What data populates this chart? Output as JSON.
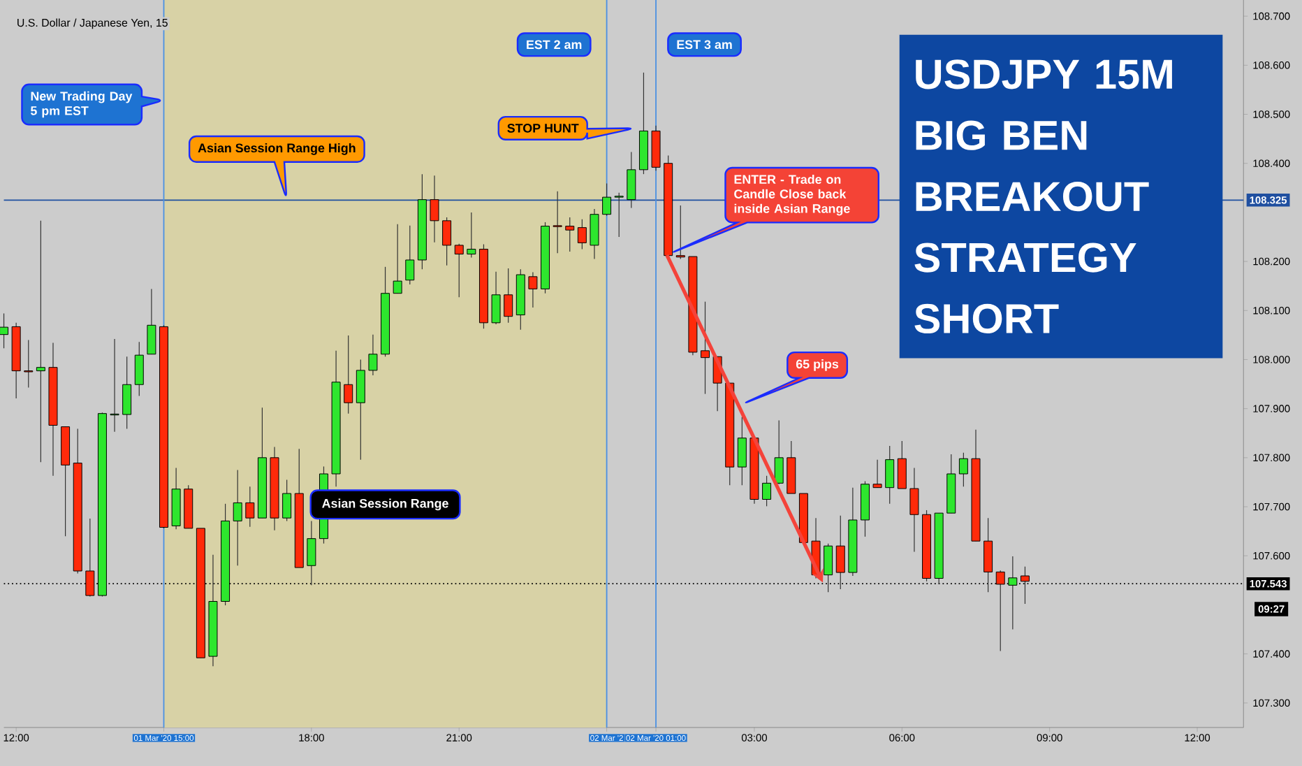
{
  "chart_data": {
    "type": "candlestick",
    "title": "USDJPY 15M BIG BEN BREAKOUT STRATEGY SHORT",
    "subtitle": "U.S. Dollar / Japanese Yen, 15",
    "categories": [
      null,
      "12:00",
      null,
      null,
      null,
      null,
      null,
      null,
      null,
      null,
      null,
      null,
      null,
      "01 Mar '20 15:00",
      null,
      null,
      null,
      null,
      null,
      null,
      null,
      null,
      null,
      null,
      null,
      "18:00",
      null,
      null,
      null,
      null,
      null,
      null,
      null,
      null,
      null,
      null,
      null,
      "21:00",
      null,
      null,
      null,
      null,
      null,
      null,
      null,
      null,
      null,
      null,
      null,
      "02 Mar '2",
      null,
      null,
      null,
      "02 Mar '20 01:00",
      null,
      null,
      null,
      null,
      null,
      null,
      null,
      "03:00",
      null,
      null,
      null,
      null,
      null,
      null,
      null,
      null,
      null,
      null,
      null,
      "06:00",
      null,
      null,
      null,
      null,
      null,
      null,
      null,
      null,
      null,
      null,
      null,
      "09:00",
      null,
      null,
      null,
      null,
      null,
      null,
      null,
      null,
      null,
      null,
      null,
      "12:00",
      null,
      null,
      null
    ],
    "ohlc": [
      [
        108.051,
        108.094,
        108.023,
        108.066
      ],
      [
        108.067,
        108.075,
        107.921,
        107.977
      ],
      [
        107.977,
        108.04,
        107.943,
        107.975
      ],
      [
        107.977,
        108.283,
        107.791,
        107.984
      ],
      [
        107.984,
        108.034,
        107.763,
        107.866
      ],
      [
        107.863,
        107.863,
        107.64,
        107.785
      ],
      [
        107.789,
        107.859,
        107.564,
        107.569
      ],
      [
        107.569,
        107.676,
        107.517,
        107.519
      ],
      [
        107.519,
        107.892,
        107.517,
        107.89
      ],
      [
        107.887,
        108.042,
        107.853,
        107.889
      ],
      [
        107.888,
        108.006,
        107.859,
        107.949
      ],
      [
        107.949,
        108.036,
        107.926,
        108.009
      ],
      [
        108.011,
        108.144,
        108.011,
        108.07
      ],
      [
        108.067,
        108.07,
        107.656,
        107.658
      ],
      [
        107.661,
        107.779,
        107.654,
        107.736
      ],
      [
        107.736,
        107.744,
        107.656,
        107.656
      ],
      [
        107.656,
        107.656,
        107.392,
        107.392
      ],
      [
        107.395,
        107.602,
        107.375,
        107.507
      ],
      [
        107.507,
        107.706,
        107.499,
        107.671
      ],
      [
        107.671,
        107.775,
        107.58,
        107.708
      ],
      [
        107.708,
        107.741,
        107.659,
        107.677
      ],
      [
        107.677,
        107.902,
        107.677,
        107.8
      ],
      [
        107.8,
        107.822,
        107.652,
        107.677
      ],
      [
        107.677,
        107.755,
        107.671,
        107.727
      ],
      [
        107.727,
        107.818,
        107.576,
        107.576
      ],
      [
        107.58,
        107.671,
        107.54,
        107.635
      ],
      [
        107.635,
        107.782,
        107.625,
        107.767
      ],
      [
        107.767,
        108.018,
        107.741,
        107.954
      ],
      [
        107.949,
        108.049,
        107.89,
        107.912
      ],
      [
        107.912,
        108.0,
        107.796,
        107.978
      ],
      [
        107.978,
        108.051,
        107.968,
        108.011
      ],
      [
        108.011,
        108.189,
        108.006,
        108.135
      ],
      [
        108.135,
        108.276,
        108.135,
        108.16
      ],
      [
        108.162,
        108.273,
        108.153,
        108.203
      ],
      [
        108.203,
        108.378,
        108.184,
        108.326
      ],
      [
        108.326,
        108.375,
        108.239,
        108.283
      ],
      [
        108.283,
        108.29,
        108.192,
        108.233
      ],
      [
        108.233,
        108.236,
        108.127,
        108.215
      ],
      [
        108.215,
        108.3,
        108.208,
        108.225
      ],
      [
        108.225,
        108.235,
        108.063,
        108.075
      ],
      [
        108.075,
        108.179,
        108.072,
        108.132
      ],
      [
        108.132,
        108.186,
        108.075,
        108.088
      ],
      [
        108.091,
        108.184,
        108.061,
        108.173
      ],
      [
        108.169,
        108.178,
        108.106,
        108.144
      ],
      [
        108.144,
        108.28,
        108.135,
        108.272
      ],
      [
        108.273,
        108.343,
        108.217,
        108.271
      ],
      [
        108.272,
        108.29,
        108.22,
        108.264
      ],
      [
        108.269,
        108.286,
        108.225,
        108.238
      ],
      [
        108.233,
        108.307,
        108.205,
        108.296
      ],
      [
        108.296,
        108.359,
        108.293,
        108.331
      ],
      [
        108.331,
        108.34,
        108.25,
        108.333
      ],
      [
        108.326,
        108.423,
        108.309,
        108.387
      ],
      [
        108.387,
        108.585,
        108.378,
        108.466
      ],
      [
        108.466,
        108.477,
        108.385,
        108.392
      ],
      [
        108.4,
        108.416,
        108.212,
        108.212
      ],
      [
        108.212,
        108.314,
        108.205,
        108.209
      ],
      [
        108.21,
        108.21,
        108.009,
        108.015
      ],
      [
        108.018,
        108.118,
        107.93,
        108.004
      ],
      [
        108.006,
        108.006,
        107.895,
        107.952
      ],
      [
        107.952,
        107.952,
        107.744,
        107.781
      ],
      [
        107.781,
        107.883,
        107.744,
        107.84
      ],
      [
        107.84,
        107.84,
        107.706,
        107.715
      ],
      [
        107.715,
        107.763,
        107.701,
        107.748
      ],
      [
        107.748,
        107.876,
        107.746,
        107.8
      ],
      [
        107.8,
        107.834,
        107.727,
        107.727
      ],
      [
        107.727,
        107.727,
        107.627,
        107.627
      ],
      [
        107.63,
        107.677,
        107.554,
        107.561
      ],
      [
        107.561,
        107.625,
        107.526,
        107.62
      ],
      [
        107.62,
        107.682,
        107.532,
        107.566
      ],
      [
        107.566,
        107.739,
        107.559,
        107.673
      ],
      [
        107.673,
        107.752,
        107.639,
        107.746
      ],
      [
        107.746,
        107.796,
        107.739,
        107.739
      ],
      [
        107.739,
        107.824,
        107.706,
        107.796
      ],
      [
        107.798,
        107.834,
        107.737,
        107.737
      ],
      [
        107.737,
        107.779,
        107.608,
        107.684
      ],
      [
        107.684,
        107.693,
        107.548,
        107.554
      ],
      [
        107.554,
        107.687,
        107.542,
        107.687
      ],
      [
        107.687,
        107.807,
        107.687,
        107.767
      ],
      [
        107.767,
        107.81,
        107.741,
        107.798
      ],
      [
        107.798,
        107.857,
        107.63,
        107.63
      ],
      [
        107.63,
        107.677,
        107.526,
        107.567
      ],
      [
        107.567,
        107.57,
        107.406,
        107.542
      ],
      [
        107.54,
        107.599,
        107.45,
        107.555
      ],
      [
        107.559,
        107.578,
        107.502,
        107.548
      ],
      null,
      null,
      null,
      null,
      null,
      null,
      null,
      null,
      null,
      null,
      null,
      null,
      null,
      null,
      null,
      null,
      null
    ],
    "ylim": [
      107.25,
      108.733
    ],
    "yticks": [
      {
        "value": 107.3,
        "label": "107.300"
      },
      {
        "value": 107.4,
        "label": "107.400"
      },
      {
        "value": 107.6,
        "label": "107.600"
      },
      {
        "value": 107.7,
        "label": "107.700"
      },
      {
        "value": 107.8,
        "label": "107.800"
      },
      {
        "value": 107.9,
        "label": "107.900"
      },
      {
        "value": 108.0,
        "label": "108.000"
      },
      {
        "value": 108.1,
        "label": "108.100"
      },
      {
        "value": 108.2,
        "label": "108.200"
      },
      {
        "value": 108.4,
        "label": "108.400"
      },
      {
        "value": 108.5,
        "label": "108.500"
      },
      {
        "value": 108.6,
        "label": "108.600"
      },
      {
        "value": 108.7,
        "label": "108.700"
      }
    ],
    "ref_lines": [
      {
        "axis": "y",
        "value": 108.325,
        "label": "108.325",
        "color": "#1f4fa0"
      },
      {
        "axis": "y",
        "value": 107.543,
        "label": "107.543",
        "color": "#000000",
        "line_style": "dotted"
      },
      {
        "axis": "x",
        "value": "01 Mar '20 15:00",
        "color": "#4a90e2"
      },
      {
        "axis": "x",
        "value": "02 Mar '2",
        "color": "#4a90e2"
      },
      {
        "axis": "x",
        "value": "02 Mar '20 01:00",
        "color": "#4a90e2"
      }
    ],
    "bands": [
      {
        "axis": "x",
        "from": "01 Mar '20 15:00",
        "to": "02 Mar '2",
        "label": "Asian Session Range",
        "color": "#d8d2a6"
      }
    ],
    "annotations": [
      "New Trading Day 5 pm EST",
      "Asian Session Range High",
      "STOP HUNT",
      "EST 2 am",
      "EST 3 am",
      "ENTER - Trade on Candle Close back inside Asian Range",
      "65 pips",
      "09:27"
    ]
  }
}
